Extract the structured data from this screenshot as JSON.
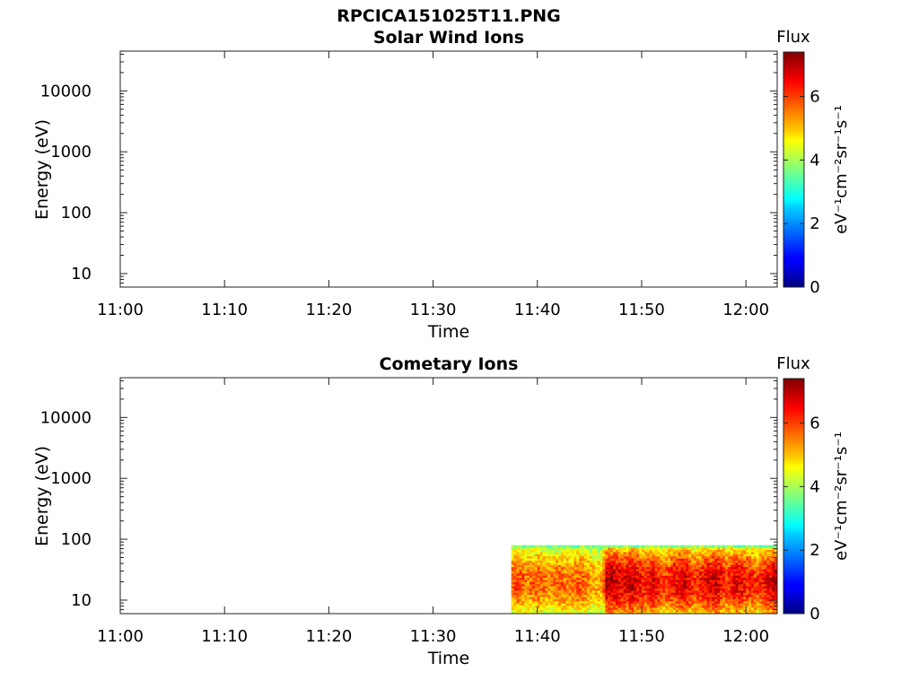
{
  "figure": {
    "title": "RPCICA151025T11.PNG"
  },
  "colorbar": {
    "label": "Flux",
    "unit": "eV⁻¹cm⁻²sr⁻¹s⁻¹",
    "ticks": [
      "0",
      "2",
      "4",
      "6"
    ],
    "tick_values": [
      0,
      2,
      4,
      6
    ],
    "range": [
      0,
      7.4
    ],
    "colormap": "jet"
  },
  "chart_data": [
    {
      "type": "heatmap",
      "title": "Solar Wind Ions",
      "xlabel": "Time",
      "ylabel": "Energy (eV)",
      "x_ticks": [
        "11:00",
        "11:10",
        "11:20",
        "11:30",
        "11:40",
        "11:50",
        "12:00"
      ],
      "x_tick_minutes": [
        0,
        10,
        20,
        30,
        40,
        50,
        60
      ],
      "xlim_minutes": [
        0,
        63
      ],
      "y_scale": "log",
      "y_ticks": [
        "10",
        "100",
        "1000",
        "10000"
      ],
      "y_tick_values": [
        10,
        100,
        1000,
        10000
      ],
      "ylim": [
        6,
        45000
      ],
      "data": []
    },
    {
      "type": "heatmap",
      "title": "Cometary Ions",
      "xlabel": "Time",
      "ylabel": "Energy (eV)",
      "x_ticks": [
        "11:00",
        "11:10",
        "11:20",
        "11:30",
        "11:40",
        "11:50",
        "12:00"
      ],
      "x_tick_minutes": [
        0,
        10,
        20,
        30,
        40,
        50,
        60
      ],
      "xlim_minutes": [
        0,
        63
      ],
      "y_scale": "log",
      "y_ticks": [
        "10",
        "100",
        "1000",
        "10000"
      ],
      "y_tick_values": [
        10,
        100,
        1000,
        10000
      ],
      "ylim": [
        6,
        45000
      ],
      "data_extent": {
        "x_minutes": [
          37.5,
          63
        ],
        "energy_ev": [
          6,
          80
        ]
      },
      "energy_bins_ev": [
        7,
        10,
        14,
        20,
        28,
        40,
        56,
        78
      ],
      "time_profile": {
        "minutes": [
          37.5,
          38,
          39,
          40,
          41,
          42,
          43,
          44,
          45,
          46,
          46.5,
          47,
          48,
          49,
          50,
          51,
          52,
          53,
          54,
          55,
          56,
          57,
          58,
          59,
          60,
          61,
          62,
          63
        ],
        "peak_flux": [
          5.8,
          6.0,
          5.6,
          5.9,
          5.5,
          5.8,
          5.6,
          5.9,
          5.4,
          5.2,
          6.9,
          7.0,
          6.6,
          6.9,
          6.3,
          6.7,
          6.0,
          6.5,
          6.8,
          6.1,
          6.6,
          6.9,
          6.2,
          6.7,
          6.4,
          6.1,
          6.6,
          7.0
        ]
      }
    }
  ]
}
